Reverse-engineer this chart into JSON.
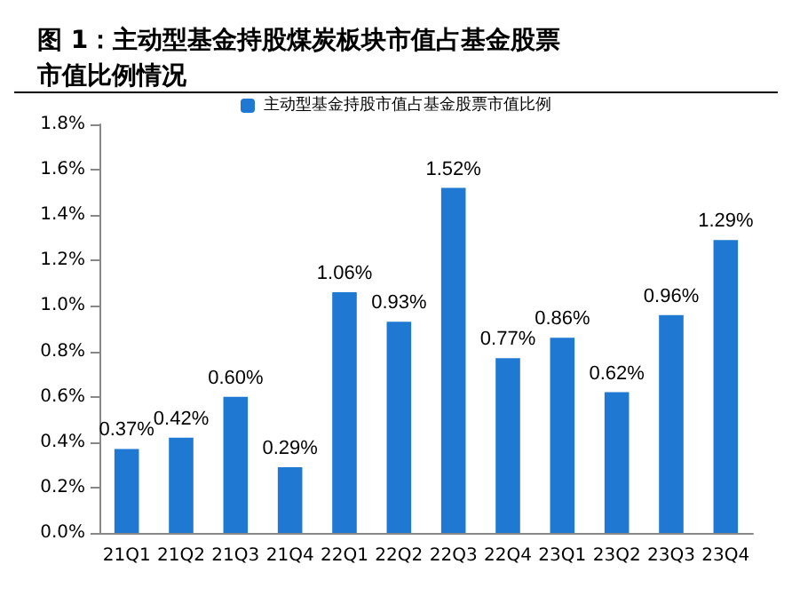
{
  "chart_data": {
    "type": "bar",
    "title": "图 1：主动型基金持股煤炭板块市值占基金股票市值比例情况",
    "categories": [
      "21Q1",
      "21Q2",
      "21Q3",
      "21Q4",
      "22Q1",
      "22Q2",
      "22Q3",
      "22Q4",
      "23Q1",
      "23Q2",
      "23Q3",
      "23Q4"
    ],
    "series": [
      {
        "name": "主动型基金持股市值占基金股票市值比例",
        "color": "#1f78d1",
        "values": [
          0.37,
          0.42,
          0.6,
          0.29,
          1.06,
          0.93,
          1.52,
          0.77,
          0.86,
          0.62,
          0.96,
          1.29
        ],
        "value_labels": [
          "0.37%",
          "0.42%",
          "0.60%",
          "0.29%",
          "1.06%",
          "0.93%",
          "1.52%",
          "0.77%",
          "0.86%",
          "0.62%",
          "0.96%",
          "1.29%"
        ]
      }
    ],
    "ylim": [
      0,
      1.8
    ],
    "yticks": [
      {
        "value": 0,
        "label": "0.0%"
      },
      {
        "value": 0.2,
        "label": "0.2%"
      },
      {
        "value": 0.4,
        "label": "0.4%"
      },
      {
        "value": 0.6,
        "label": "0.6%"
      },
      {
        "value": 0.8,
        "label": "0.8%"
      },
      {
        "value": 1.0,
        "label": "1.0%"
      },
      {
        "value": 1.2,
        "label": "1.2%"
      },
      {
        "value": 1.4,
        "label": "1.4%"
      },
      {
        "value": 1.6,
        "label": "1.6%"
      },
      {
        "value": 1.8,
        "label": "1.8%"
      }
    ],
    "legend": "top",
    "grid": false
  }
}
